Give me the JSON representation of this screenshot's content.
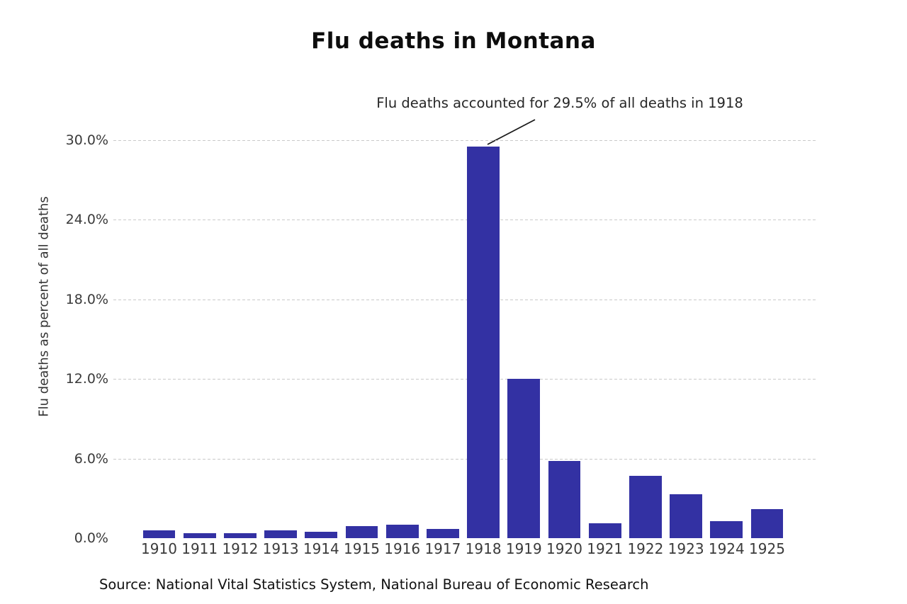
{
  "chart_data": {
    "type": "bar",
    "title": "Flu deaths in Montana",
    "ylabel": "Flu deaths as percent of all deaths",
    "xlabel": "",
    "categories": [
      "1910",
      "1911",
      "1912",
      "1913",
      "1914",
      "1915",
      "1916",
      "1917",
      "1918",
      "1919",
      "1920",
      "1921",
      "1922",
      "1923",
      "1924",
      "1925"
    ],
    "values": [
      0.6,
      0.4,
      0.4,
      0.6,
      0.5,
      0.9,
      1.0,
      0.7,
      29.5,
      12.0,
      5.8,
      1.1,
      4.7,
      3.3,
      1.3,
      2.2
    ],
    "ylim": [
      0,
      32
    ],
    "yticks": {
      "values": [
        0,
        6,
        12,
        18,
        24,
        30
      ],
      "labels": [
        "0.0%",
        "6.0%",
        "12.0%",
        "18.0%",
        "24.0%",
        "30.0%"
      ]
    },
    "gridline_values": [
      6,
      12,
      18,
      24,
      30
    ],
    "grid": "horizontal dashed, no 0% line, no axis spines",
    "legend": "none",
    "bar_color": "#3331A3",
    "gridline_color": "#c9c9c9",
    "annotation": {
      "text": "Flu deaths accounted for 29.5% of all deaths in 1918",
      "target_category": "1918",
      "target_value": 29.5
    },
    "source": "Source: National Vital Statistics System, National Bureau of Economic Research"
  }
}
